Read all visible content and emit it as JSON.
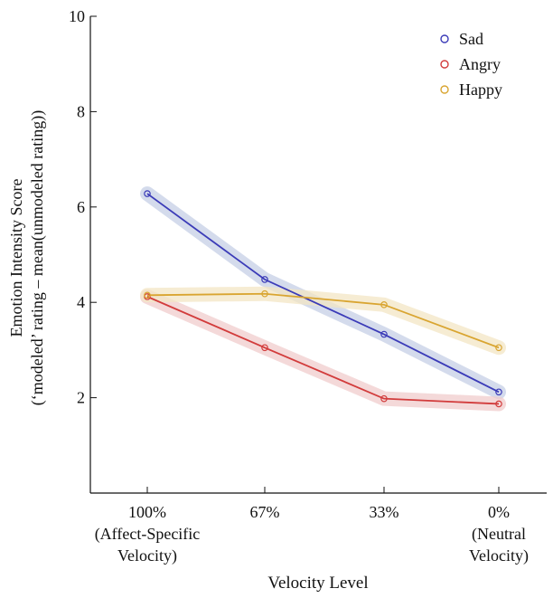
{
  "chart_data": {
    "type": "line",
    "title": "",
    "xlabel": "Velocity Level",
    "ylabel_lines": [
      "Emotion Intensity Score",
      "(‘modeled’ rating – mean(unmodeled rating))"
    ],
    "categories": [
      [
        "100%",
        "(Affect-Specific",
        "Velocity)"
      ],
      [
        "67%"
      ],
      [
        "33%"
      ],
      [
        "0%",
        "(Neutral",
        "Velocity)"
      ]
    ],
    "yticks": [
      "2",
      "4",
      "6",
      "8",
      "10"
    ],
    "ylim": [
      0,
      10
    ],
    "grid": false,
    "legend_position": "top-right",
    "series": [
      {
        "name": "Sad",
        "color": "#3b3bb8",
        "band_color": "#c6cfe6",
        "values": [
          6.28,
          4.48,
          3.33,
          2.12
        ]
      },
      {
        "name": "Angry",
        "color": "#d23c3c",
        "band_color": "#f0cccc",
        "values": [
          4.12,
          3.05,
          1.98,
          1.87
        ]
      },
      {
        "name": "Happy",
        "color": "#d9a531",
        "band_color": "#f3e6c4",
        "values": [
          4.15,
          4.18,
          3.95,
          3.05
        ]
      }
    ]
  }
}
